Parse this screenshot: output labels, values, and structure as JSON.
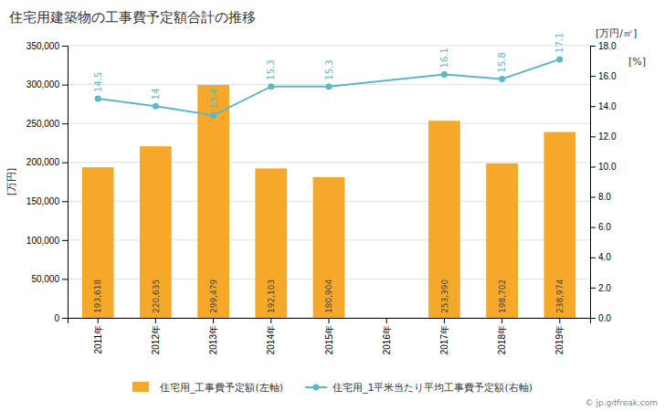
{
  "chart_data": {
    "type": "bar",
    "title": "住宅用建築物の工事費予定額合計の推移",
    "categories": [
      "2011年",
      "2012年",
      "2013年",
      "2014年",
      "2015年",
      "2016年",
      "2017年",
      "2018年",
      "2019年"
    ],
    "series": [
      {
        "name": "住宅用_工事費予定額(左軸)",
        "type": "bar",
        "color": "#F5A829",
        "values": [
          193618,
          220635,
          299479,
          192103,
          180904,
          0,
          253390,
          198702,
          238974
        ],
        "value_labels": [
          "193,618",
          "220,635",
          "299,479",
          "192,103",
          "180,904",
          null,
          "253,390",
          "198,702",
          "238,974"
        ]
      },
      {
        "name": "住宅用_1平米当たり平均工事費予定額(右軸)",
        "type": "line",
        "axis": "y2",
        "color": "#5BB8C8",
        "marker": "circle",
        "values": [
          14.5,
          14.0,
          13.4,
          15.3,
          15.3,
          null,
          16.1,
          15.8,
          17.1
        ]
      }
    ],
    "ylabel": "[万円]",
    "y2label": "[万円/㎡]",
    "annotations": [
      "[%]",
      "© jp.gdfreak.com"
    ],
    "ylim": [
      0,
      350000
    ],
    "yticks": [
      0,
      {
        "value": 50000,
        "label": "50,000"
      },
      {
        "value": 100000,
        "label": "100,000"
      },
      {
        "value": 150000,
        "label": "150,000"
      },
      {
        "value": 200000,
        "label": "200,000"
      },
      {
        "value": 250000,
        "label": "250,000"
      },
      {
        "value": 300000,
        "label": "300,000"
      },
      {
        "value": 350000,
        "label": "350,000"
      }
    ],
    "y2lim": [
      0,
      18.0
    ],
    "y2ticks": [
      {
        "value": 0.0,
        "label": "0.0"
      },
      {
        "value": 2.0,
        "label": "2.0"
      },
      {
        "value": 4.0,
        "label": "4.0"
      },
      {
        "value": 6.0,
        "label": "6.0"
      },
      {
        "value": 8.0,
        "label": "8.0"
      },
      {
        "value": 10.0,
        "label": "10.0"
      },
      {
        "value": 12.0,
        "label": "12.0"
      },
      {
        "value": 14.0,
        "label": "14.0"
      },
      {
        "value": 16.0,
        "label": "16.0"
      },
      {
        "value": 18.0,
        "label": "18.0"
      }
    ],
    "grid": true,
    "data_labels": true,
    "legend": "bottom"
  }
}
